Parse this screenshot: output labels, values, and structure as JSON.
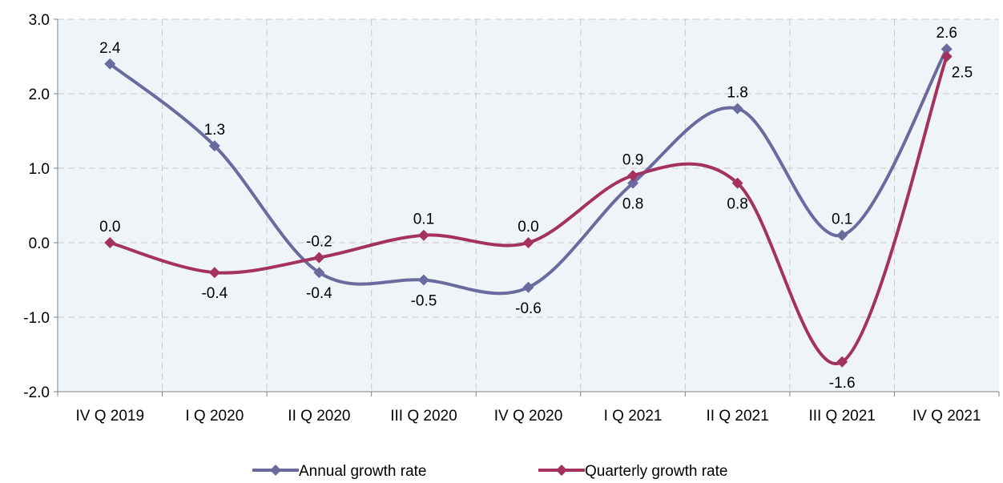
{
  "chart_data": {
    "type": "line",
    "categories": [
      "IV Q 2019",
      "I Q 2020",
      "II Q 2020",
      "III Q 2020",
      "IV Q 2020",
      "I Q 2021",
      "II Q 2021",
      "III Q 2021",
      "IV Q 2021"
    ],
    "ylim": [
      -2.0,
      3.0
    ],
    "ytick_labels": [
      "-2.0",
      "-1.0",
      "0.0",
      "1.0",
      "2.0",
      "3.0"
    ],
    "grid": true,
    "smooth": true,
    "legend_position": "bottom",
    "series": [
      {
        "name": "Annual growth rate",
        "color": "#6a6a9e",
        "marker": "diamond",
        "values": [
          2.4,
          1.3,
          -0.4,
          -0.5,
          -0.6,
          0.8,
          1.8,
          0.1,
          2.6
        ],
        "labels": [
          "2.4",
          "1.3",
          "-0.4",
          "-0.5",
          "-0.6",
          "0.8",
          "1.8",
          "0.1",
          "2.6"
        ]
      },
      {
        "name": "Quarterly growth rate",
        "color": "#a3325f",
        "marker": "diamond",
        "values": [
          0.0,
          -0.4,
          -0.2,
          0.1,
          0.0,
          0.9,
          0.8,
          -1.6,
          2.5
        ],
        "labels": [
          "0.0",
          "-0.4",
          "-0.2",
          "0.1",
          "0.0",
          "0.9",
          "0.8",
          "-1.6",
          "2.5"
        ]
      }
    ]
  }
}
